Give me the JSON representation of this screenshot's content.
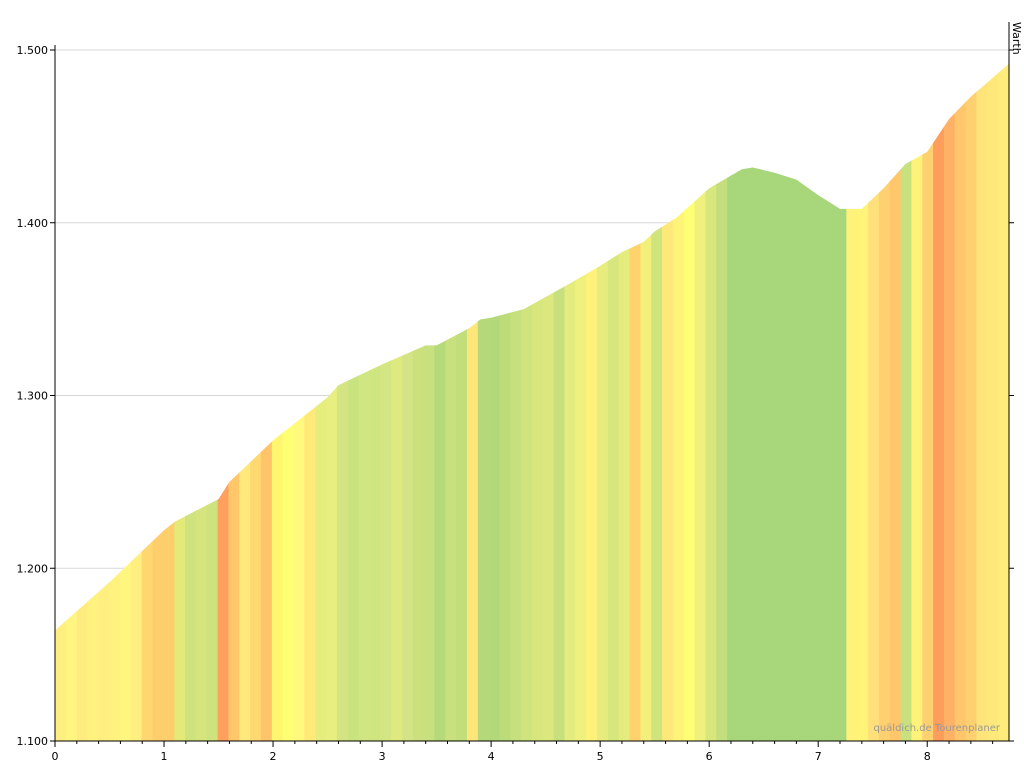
{
  "chart_data": {
    "type": "area",
    "title": "",
    "xlabel": "",
    "ylabel": "",
    "xlim": [
      0,
      8.75
    ],
    "ylim": [
      1100,
      1500
    ],
    "x_ticks": [
      0,
      1,
      2,
      3,
      4,
      5,
      6,
      7,
      8
    ],
    "x_tick_labels": [
      "0",
      "1",
      "2",
      "3",
      "4",
      "5",
      "6",
      "7",
      "8"
    ],
    "y_ticks": [
      1100,
      1200,
      1300,
      1400,
      1500
    ],
    "y_tick_labels": [
      "1.100",
      "1.200",
      "1.300",
      "1.400",
      "1.500"
    ],
    "grid": "horizontal",
    "profile": {
      "x": [
        0,
        0.5,
        1.0,
        1.1,
        1.5,
        1.6,
        2.0,
        2.5,
        2.6,
        3.0,
        3.4,
        3.5,
        3.8,
        3.9,
        4.0,
        4.3,
        4.7,
        5.0,
        5.2,
        5.4,
        5.5,
        5.7,
        6.0,
        6.3,
        6.4,
        6.6,
        6.8,
        7.0,
        7.2,
        7.4,
        7.6,
        7.8,
        8.0,
        8.2,
        8.4,
        8.75
      ],
      "y": [
        1164,
        1192,
        1222,
        1227,
        1240,
        1250,
        1274,
        1299,
        1306,
        1318,
        1329,
        1329,
        1339,
        1344,
        1345,
        1350,
        1364,
        1375,
        1383,
        1389,
        1395,
        1403,
        1420,
        1431,
        1432,
        1429,
        1425,
        1416,
        1408,
        1408,
        1420,
        1434,
        1441,
        1460,
        1473,
        1492
      ]
    },
    "segment_colors": [
      "#FFEF80",
      "#FFF580",
      "#FFEC80",
      "#FFF27F",
      "#FFEE80",
      "#FFF27F",
      "#FFF680",
      "#FFEE80",
      "#FFD670",
      "#FFCE6C",
      "#FFCE6C",
      "#E4E977",
      "#CEE27E",
      "#D6E47D",
      "#CEE27E",
      "#FFA05E",
      "#FFC76A",
      "#FFE87C",
      "#FFD871",
      "#FFC46A",
      "#FFF56F",
      "#FFFF74",
      "#FFF97D",
      "#FFEA79",
      "#E5EE7D",
      "#E8EE7F",
      "#D4E482",
      "#C9E37E",
      "#D0E682",
      "#CFE680",
      "#D4E683",
      "#DEEA7F",
      "#D4E484",
      "#CCE07E",
      "#C8E07E",
      "#B4DA7A",
      "#C8E07E",
      "#C2DE7A",
      "#FFE67A",
      "#B4D87A",
      "#B2D87A",
      "#BCDC7A",
      "#C6E07E",
      "#D0E47E",
      "#D8E67E",
      "#DCE87E",
      "#C6E07E",
      "#E4EC7E",
      "#F0F07E",
      "#FFF27A",
      "#E6EC7E",
      "#D8E67E",
      "#E4EC7E",
      "#FFD26E",
      "#F2F07A",
      "#D0E47E",
      "#FFE87A",
      "#FFF478",
      "#FFFF76",
      "#F0F07E",
      "#D8E67E",
      "#C4DE7E",
      "#A8D67A",
      "#A8D67A",
      "#A8D67A",
      "#A8D67A",
      "#A8D67A",
      "#A8D67A",
      "#A8D67A",
      "#A8D67A",
      "#A8D67A",
      "#A8D67A",
      "#A8D67A",
      "#FFF27A",
      "#FFF478",
      "#FFE07A",
      "#FFD070",
      "#FFC66C",
      "#C8E07E",
      "#FFF27A",
      "#FFD070",
      "#FF9E5C",
      "#FFB266",
      "#FFC66C",
      "#FFD070",
      "#FFE47A",
      "#FFE87A",
      "#FFEC7A"
    ],
    "endpoint_label": "Warth",
    "credit": "quäldich.de Tourenplaner"
  }
}
